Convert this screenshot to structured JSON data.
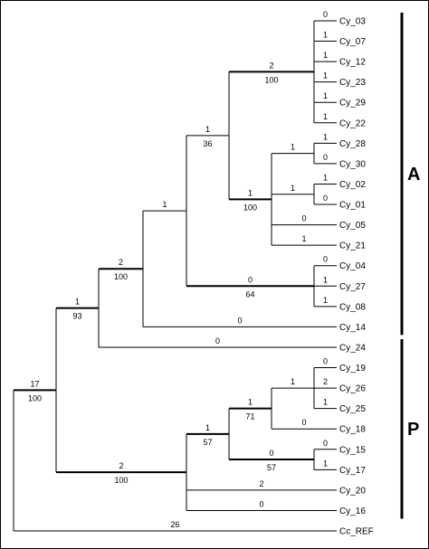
{
  "taxa": [
    "Cy_03",
    "Cy_07",
    "Cy_12",
    "Cy_23",
    "Cy_29",
    "Cy_22",
    "Cy_28",
    "Cy_30",
    "Cy_02",
    "Cy_01",
    "Cy_05",
    "Cy_21",
    "Cy_04",
    "Cy_27",
    "Cy_08",
    "Cy_14",
    "Cy_24",
    "Cy_19",
    "Cy_26",
    "Cy_25",
    "Cy_18",
    "Cy_15",
    "Cy_17",
    "Cy_20",
    "Cy_16",
    "Cc_REF"
  ],
  "tree": {
    "children": [
      {
        "above": "17",
        "below": "100",
        "children": [
          {
            "above": "1",
            "below": "93",
            "children": [
              {
                "above": "2",
                "below": "100",
                "children": [
                  {
                    "above": "1",
                    "children": [
                      {
                        "above": "1",
                        "below": "36",
                        "children": [
                          {
                            "above": "2",
                            "below": "100",
                            "children": [
                              {
                                "name": "Cy_03",
                                "above": "0"
                              },
                              {
                                "name": "Cy_07",
                                "above": "1"
                              },
                              {
                                "name": "Cy_12",
                                "above": "1"
                              },
                              {
                                "name": "Cy_23",
                                "above": "1"
                              },
                              {
                                "name": "Cy_29",
                                "above": "1"
                              },
                              {
                                "name": "Cy_22",
                                "above": "1"
                              }
                            ]
                          },
                          {
                            "above": "1",
                            "below": "100",
                            "children": [
                              {
                                "above": "1",
                                "children": [
                                  {
                                    "name": "Cy_28",
                                    "above": "1"
                                  },
                                  {
                                    "name": "Cy_30",
                                    "above": "0"
                                  }
                                ]
                              },
                              {
                                "above": "1",
                                "children": [
                                  {
                                    "name": "Cy_02",
                                    "above": "1"
                                  },
                                  {
                                    "name": "Cy_01",
                                    "above": "0"
                                  }
                                ]
                              },
                              {
                                "name": "Cy_05",
                                "above": "0"
                              },
                              {
                                "name": "Cy_21",
                                "above": "1"
                              }
                            ]
                          }
                        ]
                      },
                      {
                        "above": "0",
                        "below": "64",
                        "children": [
                          {
                            "name": "Cy_04",
                            "above": "0"
                          },
                          {
                            "name": "Cy_27",
                            "above": "1"
                          },
                          {
                            "name": "Cy_08",
                            "above": "1"
                          }
                        ]
                      }
                    ]
                  },
                  {
                    "name": "Cy_14",
                    "above": "0"
                  }
                ]
              },
              {
                "name": "Cy_24",
                "above": "0"
              }
            ]
          },
          {
            "above": "2",
            "below": "100",
            "children": [
              {
                "above": "1",
                "below": "57",
                "children": [
                  {
                    "above": "1",
                    "below": "71",
                    "children": [
                      {
                        "above": "1",
                        "children": [
                          {
                            "name": "Cy_19",
                            "above": "0"
                          },
                          {
                            "name": "Cy_26",
                            "above": "2"
                          },
                          {
                            "name": "Cy_25",
                            "above": "1"
                          }
                        ]
                      },
                      {
                        "name": "Cy_18",
                        "above": "0"
                      }
                    ]
                  },
                  {
                    "above": "0",
                    "below": "57",
                    "children": [
                      {
                        "name": "Cy_15",
                        "above": "0"
                      },
                      {
                        "name": "Cy_17",
                        "above": "1"
                      }
                    ]
                  }
                ]
              },
              {
                "name": "Cy_20",
                "above": "2"
              },
              {
                "name": "Cy_16",
                "above": "0"
              }
            ]
          }
        ]
      },
      {
        "name": "Cc_REF",
        "above": "26"
      }
    ]
  },
  "groups": [
    {
      "label": "A",
      "from": "Cy_03",
      "to": "Cy_14"
    },
    {
      "label": "P",
      "from": "Cy_24",
      "to": "Cy_16"
    }
  ]
}
